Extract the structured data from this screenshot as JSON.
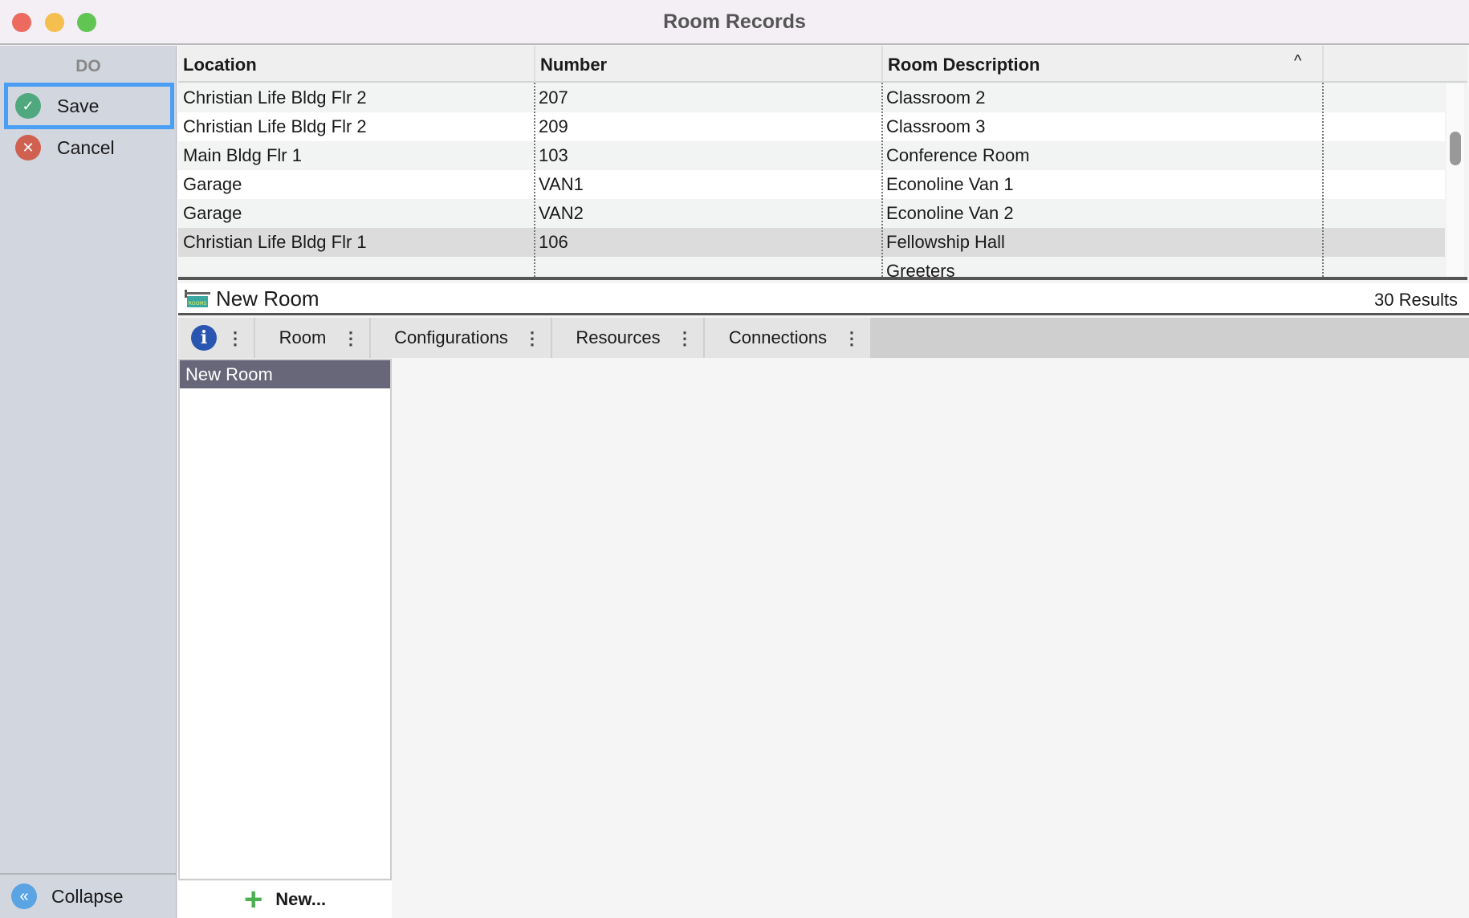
{
  "window": {
    "title": "Room Records"
  },
  "sidebar": {
    "section": "DO",
    "save": "Save",
    "cancel": "Cancel",
    "collapse": "Collapse"
  },
  "table": {
    "columns": [
      "Location",
      "Number",
      "Room Description",
      ""
    ],
    "sort": "Room Description ascending",
    "rows": [
      [
        "Christian Life Bldg Flr 2",
        "207",
        "Classroom 2"
      ],
      [
        "Christian Life Bldg Flr 2",
        "209",
        "Classroom 3"
      ],
      [
        "Main Bldg Flr 1",
        "103",
        "Conference Room"
      ],
      [
        "Garage",
        "VAN1",
        "Econoline Van 1"
      ],
      [
        "Garage",
        "VAN2",
        "Econoline Van 2"
      ],
      [
        "Christian Life Bldg Flr 1",
        "106",
        "Fellowship Hall"
      ],
      [
        "",
        "",
        "Greeters"
      ]
    ],
    "selected_row": 5
  },
  "record": {
    "title": "New Room",
    "results": "30 Results",
    "icon_text": "ROOMS"
  },
  "tabs": [
    "Room",
    "Configurations",
    "Resources",
    "Connections"
  ],
  "list": {
    "header": "New Room",
    "new_button": "New..."
  },
  "colors": {
    "save": "#4fa87e",
    "cancel": "#d0604f",
    "focus": "#4a9ff5",
    "info": "#2a55b0"
  }
}
